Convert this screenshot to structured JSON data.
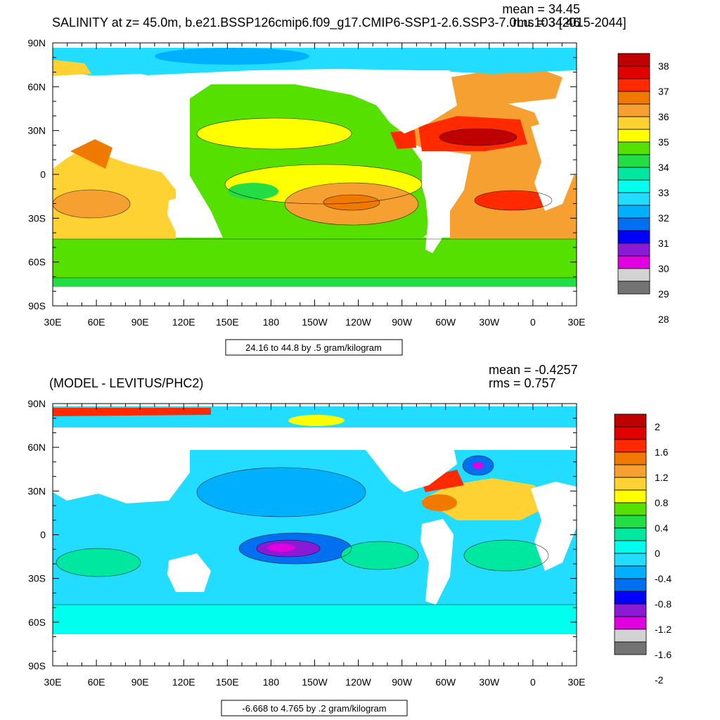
{
  "chart_data": [
    {
      "type": "heatmap",
      "title": "SALINITY at z=  45.0m, b.e21.BSSP126cmip6.f09_g17.CMIP6-SSP1-2.6.SSP3-7.0Lu.103 [2015-2044]",
      "stats": [
        "mean = 34.45",
        "rms = 34.46"
      ],
      "x_ticks": [
        "30E",
        "60E",
        "90E",
        "120E",
        "150E",
        "180",
        "150W",
        "120W",
        "90W",
        "60W",
        "30W",
        "0",
        "30E"
      ],
      "y_ticks": [
        "90N",
        "60N",
        "30N",
        "0",
        "30S",
        "60S",
        "90S"
      ],
      "xlim": [
        30,
        390
      ],
      "ylim": [
        -90,
        90
      ],
      "contour_info": "24.16 to 44.8 by .5 gram/kilogram",
      "colorbar": {
        "labels": [
          "38",
          "37",
          "36",
          "35",
          "34",
          "33",
          "32",
          "31",
          "30",
          "29",
          "28"
        ],
        "colors": [
          "#bf0000",
          "#e00000",
          "#ff2a00",
          "#f07a00",
          "#f5a030",
          "#ffd233",
          "#ffff00",
          "#55e000",
          "#22dd44",
          "#00e8a0",
          "#00ffee",
          "#22ddff",
          "#00b0ff",
          "#0070f0",
          "#0000ff",
          "#8a1ad6",
          "#e000e0",
          "#d3d3d3",
          "#737373"
        ]
      }
    },
    {
      "type": "heatmap",
      "title": "(MODEL - LEVITUS/PHC2)",
      "stats": [
        "mean = -0.4257",
        "rms = 0.757"
      ],
      "x_ticks": [
        "30E",
        "60E",
        "90E",
        "120E",
        "150E",
        "180",
        "150W",
        "120W",
        "90W",
        "60W",
        "30W",
        "0",
        "30E"
      ],
      "y_ticks": [
        "90N",
        "60N",
        "30N",
        "0",
        "30S",
        "60S",
        "90S"
      ],
      "xlim": [
        30,
        390
      ],
      "ylim": [
        -90,
        90
      ],
      "contour_info": "-6.668 to 4.765 by .2 gram/kilogram",
      "colorbar": {
        "labels": [
          "2",
          "1.6",
          "1.2",
          "0.8",
          "0.4",
          "0",
          "-0.4",
          "-0.8",
          "-1.2",
          "-1.6",
          "-2"
        ],
        "colors": [
          "#bf0000",
          "#e00000",
          "#ff2a00",
          "#f07a00",
          "#f5a030",
          "#ffd233",
          "#ffff00",
          "#55e000",
          "#22dd44",
          "#00e8a0",
          "#00ffee",
          "#22ddff",
          "#00b0ff",
          "#0070f0",
          "#0000ff",
          "#8a1ad6",
          "#e000e0",
          "#d3d3d3",
          "#737373"
        ]
      }
    }
  ]
}
